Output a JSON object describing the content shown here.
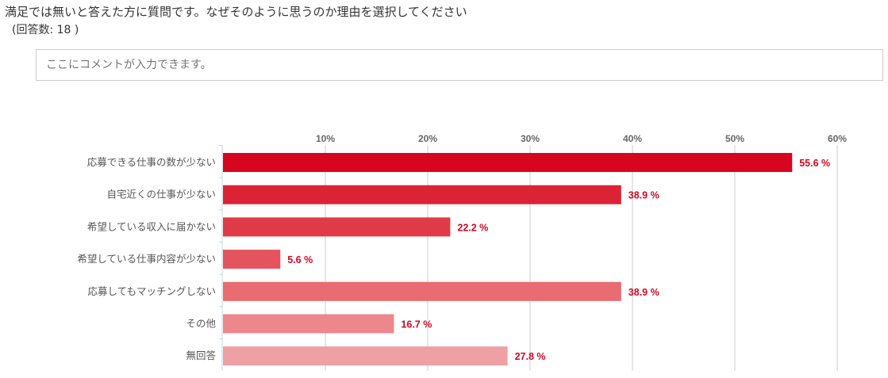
{
  "question": "満足では無いと答えた方に質問です。なぜそのように思うのか理由を選択してください",
  "response_count": "(回答数: 18 )",
  "comment_placeholder": "ここにコメントが入力できます。",
  "chart_data": {
    "type": "bar",
    "orientation": "horizontal",
    "categories": [
      "応募できる仕事の数が少ない",
      "自宅近くの仕事が少ない",
      "希望している収入に届かない",
      "希望している仕事内容が少ない",
      "応募してもマッチングしない",
      "その他",
      "無回答"
    ],
    "values": [
      55.6,
      38.9,
      22.2,
      5.6,
      38.9,
      16.7,
      27.8
    ],
    "value_labels": [
      "55.6 %",
      "38.9 %",
      "22.2 %",
      "5.6 %",
      "38.9 %",
      "16.7 %",
      "27.8 %"
    ],
    "colors": [
      "#d60620",
      "#dc2336",
      "#e03a47",
      "#e5535e",
      "#e86c72",
      "#ec878c",
      "#efa0a4"
    ],
    "label_color": "#d60620",
    "xticks": [
      "10%",
      "20%",
      "30%",
      "40%",
      "50%",
      "60%"
    ],
    "xtick_values": [
      10,
      20,
      30,
      40,
      50,
      60
    ],
    "xlim": [
      0,
      60
    ],
    "grid": true
  }
}
